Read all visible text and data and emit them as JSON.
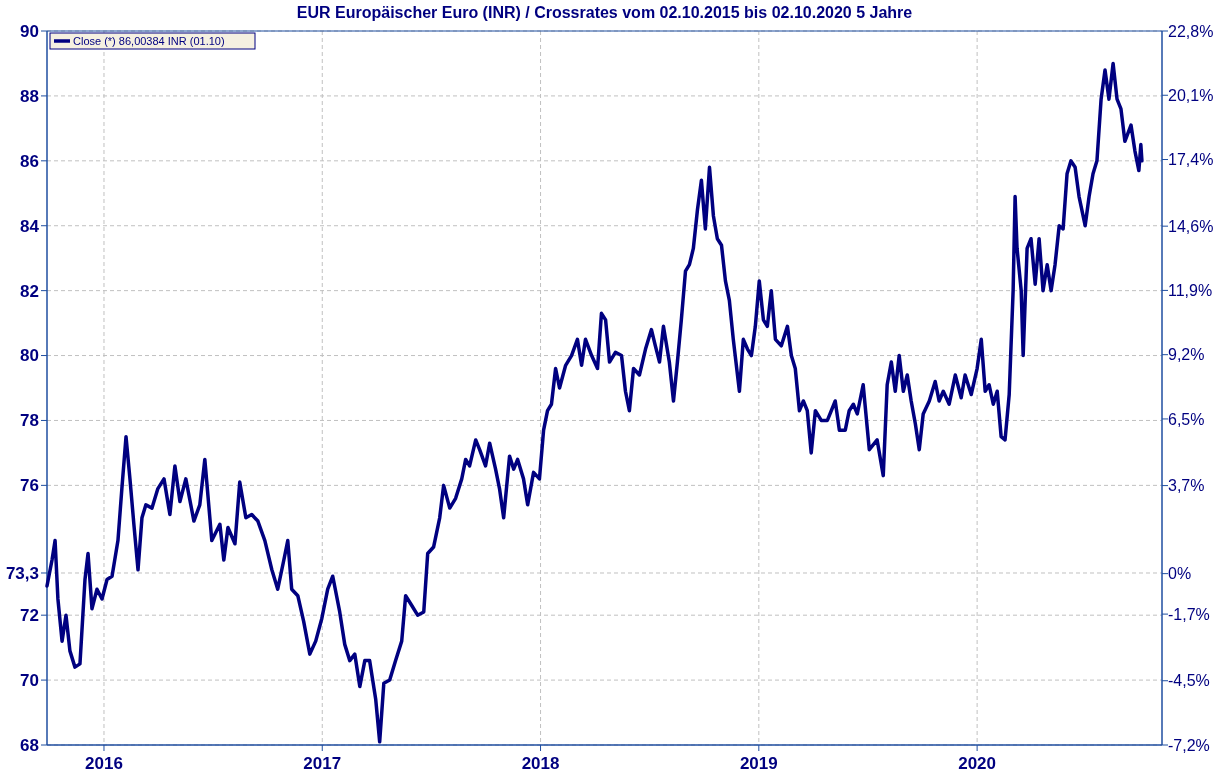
{
  "chart_data": {
    "type": "line",
    "title": "EUR Europäischer Euro (INR) / Crossrates vom 02.10.2015 bis 02.10.2020 5 Jahre",
    "xlim": [
      2015.739,
      2020.847
    ],
    "xticks": [
      2016,
      2017,
      2018,
      2019,
      2020
    ],
    "ylim": [
      68,
      90
    ],
    "yticks": [
      68,
      70,
      72,
      {
        "value": 73.3,
        "label": "73,3"
      },
      76,
      78,
      80,
      82,
      84,
      86,
      88,
      90
    ],
    "y2lim": [
      -7.2,
      22.8
    ],
    "y2ticks": [
      {
        "value": -7.2,
        "label": "-7,2%"
      },
      {
        "value": -4.5,
        "label": "-4,5%"
      },
      {
        "value": -1.7,
        "label": "-1,7%"
      },
      {
        "value": 0,
        "label": "0%"
      },
      {
        "value": 3.7,
        "label": "3,7%"
      },
      {
        "value": 6.5,
        "label": "6,5%"
      },
      {
        "value": 9.2,
        "label": "9,2%"
      },
      {
        "value": 11.9,
        "label": "11,9%"
      },
      {
        "value": 14.6,
        "label": "14,6%"
      },
      {
        "value": 17.4,
        "label": "17,4%"
      },
      {
        "value": 20.1,
        "label": "20,1%"
      },
      {
        "value": 22.8,
        "label": "22,8%"
      }
    ],
    "grid": true,
    "legend": "top left",
    "line_style": "solid",
    "series": [
      {
        "name": "Close (*) 86,00384 INR (01.10)",
        "color": "#000080",
        "x": [
          2015.739,
          2015.762,
          2015.776,
          2015.789,
          2015.808,
          2015.826,
          2015.844,
          2015.867,
          2015.89,
          2015.913,
          2015.927,
          2015.945,
          2015.968,
          2015.991,
          2016.014,
          2016.037,
          2016.064,
          2016.082,
          2016.101,
          2016.119,
          2016.137,
          2016.156,
          2016.174,
          2016.192,
          2016.22,
          2016.247,
          2016.275,
          2016.302,
          2016.325,
          2016.348,
          2016.375,
          2016.412,
          2016.439,
          2016.462,
          2016.494,
          2016.531,
          2016.549,
          2016.568,
          2016.6,
          2016.622,
          2016.65,
          2016.677,
          2016.705,
          2016.737,
          2016.769,
          2016.796,
          2016.824,
          2016.842,
          2016.86,
          2016.888,
          2016.915,
          2016.943,
          2016.97,
          2016.998,
          2017.025,
          2017.048,
          2017.08,
          2017.103,
          2017.126,
          2017.149,
          2017.172,
          2017.195,
          2017.217,
          2017.245,
          2017.263,
          2017.282,
          2017.309,
          2017.336,
          2017.364,
          2017.382,
          2017.41,
          2017.437,
          2017.465,
          2017.483,
          2017.51,
          2017.538,
          2017.556,
          2017.584,
          2017.611,
          2017.639,
          2017.657,
          2017.675,
          2017.703,
          2017.721,
          2017.748,
          2017.767,
          2017.794,
          2017.812,
          2017.831,
          2017.858,
          2017.877,
          2017.895,
          2017.922,
          2017.941,
          2017.968,
          2017.995,
          2018.014,
          2018.032,
          2018.05,
          2018.069,
          2018.087,
          2018.115,
          2018.142,
          2018.169,
          2018.188,
          2018.206,
          2018.234,
          2018.261,
          2018.279,
          2018.298,
          2018.316,
          2018.343,
          2018.371,
          2018.389,
          2018.407,
          2018.426,
          2018.453,
          2018.481,
          2018.508,
          2018.526,
          2018.545,
          2018.563,
          2018.59,
          2018.609,
          2018.627,
          2018.645,
          2018.664,
          2018.682,
          2018.7,
          2018.719,
          2018.737,
          2018.755,
          2018.774,
          2018.792,
          2018.81,
          2018.829,
          2018.847,
          2018.865,
          2018.883,
          2018.911,
          2018.929,
          2018.948,
          2018.966,
          2018.984,
          2019.002,
          2019.021,
          2019.039,
          2019.057,
          2019.076,
          2019.103,
          2019.131,
          2019.149,
          2019.167,
          2019.186,
          2019.204,
          2019.222,
          2019.24,
          2019.259,
          2019.286,
          2019.314,
          2019.35,
          2019.369,
          2019.396,
          2019.414,
          2019.433,
          2019.451,
          2019.478,
          2019.506,
          2019.542,
          2019.57,
          2019.588,
          2019.607,
          2019.625,
          2019.643,
          2019.662,
          2019.68,
          2019.698,
          2019.717,
          2019.735,
          2019.753,
          2019.781,
          2019.808,
          2019.826,
          2019.845,
          2019.872,
          2019.9,
          2019.927,
          2019.945,
          2019.973,
          2020.0,
          2020.019,
          2020.037,
          2020.055,
          2020.074,
          2020.092,
          2020.11,
          2020.128,
          2020.147,
          2020.165,
          2020.174,
          2020.183,
          2020.202,
          2020.211,
          2020.229,
          2020.247,
          2020.266,
          2020.284,
          2020.302,
          2020.321,
          2020.339,
          2020.357,
          2020.376,
          2020.394,
          2020.412,
          2020.43,
          2020.449,
          2020.467,
          2020.495,
          2020.513,
          2020.531,
          2020.549,
          2020.568,
          2020.586,
          2020.604,
          2020.623,
          2020.641,
          2020.659,
          2020.677,
          2020.705,
          2020.723,
          2020.741,
          2020.75,
          2020.755
        ],
        "values": [
          72.9,
          73.7,
          74.3,
          72.5,
          71.2,
          72.0,
          70.9,
          70.4,
          70.5,
          73.1,
          73.9,
          72.2,
          72.8,
          72.5,
          73.1,
          73.2,
          74.3,
          75.9,
          77.5,
          76.2,
          74.8,
          73.4,
          75.0,
          75.4,
          75.3,
          75.9,
          76.2,
          75.1,
          76.6,
          75.5,
          76.2,
          74.9,
          75.4,
          76.8,
          74.3,
          74.8,
          73.7,
          74.7,
          74.2,
          76.1,
          75.0,
          75.1,
          74.9,
          74.3,
          73.4,
          72.8,
          73.7,
          74.3,
          72.8,
          72.6,
          71.8,
          70.8,
          71.2,
          71.9,
          72.8,
          73.2,
          72.1,
          71.1,
          70.6,
          70.8,
          69.8,
          70.6,
          70.6,
          69.4,
          68.1,
          69.9,
          70.0,
          70.6,
          71.2,
          72.6,
          72.3,
          72.0,
          72.1,
          73.9,
          74.1,
          75.0,
          76.0,
          75.3,
          75.6,
          76.2,
          76.8,
          76.6,
          77.4,
          77.1,
          76.6,
          77.3,
          76.5,
          75.9,
          75.0,
          76.9,
          76.5,
          76.8,
          76.2,
          75.4,
          76.4,
          76.2,
          77.7,
          78.3,
          78.5,
          79.6,
          79.0,
          79.7,
          80.0,
          80.5,
          79.7,
          80.5,
          80.0,
          79.6,
          81.3,
          81.1,
          79.8,
          80.1,
          80.0,
          78.9,
          78.3,
          79.6,
          79.4,
          80.2,
          80.8,
          80.3,
          79.8,
          80.9,
          79.8,
          78.6,
          79.8,
          81.1,
          82.6,
          82.8,
          83.3,
          84.5,
          85.4,
          83.9,
          85.8,
          84.3,
          83.6,
          83.4,
          82.3,
          81.7,
          80.5,
          78.9,
          80.5,
          80.2,
          80.0,
          80.9,
          82.3,
          81.1,
          80.9,
          82.0,
          80.5,
          80.3,
          80.9,
          80.0,
          79.6,
          78.3,
          78.6,
          78.3,
          77.0,
          78.3,
          78.0,
          78.0,
          78.6,
          77.7,
          77.7,
          78.3,
          78.5,
          78.2,
          79.1,
          77.1,
          77.4,
          76.3,
          79.1,
          79.8,
          78.9,
          80.0,
          78.9,
          79.4,
          78.6,
          77.9,
          77.1,
          78.2,
          78.6,
          79.2,
          78.6,
          78.9,
          78.5,
          79.4,
          78.7,
          79.4,
          78.8,
          79.6,
          80.5,
          78.9,
          79.1,
          78.5,
          78.9,
          77.5,
          77.4,
          78.8,
          82.0,
          84.9,
          83.3,
          82.0,
          80.0,
          83.3,
          83.6,
          82.2,
          83.6,
          82.0,
          82.8,
          82.0,
          82.8,
          84.0,
          83.9,
          85.6,
          86.0,
          85.8,
          84.9,
          84.0,
          84.9,
          85.6,
          86.0,
          87.9,
          88.8,
          87.9,
          89.0,
          87.9,
          87.6,
          86.6,
          87.1,
          86.3,
          85.7,
          86.5,
          86.0
        ]
      }
    ]
  }
}
